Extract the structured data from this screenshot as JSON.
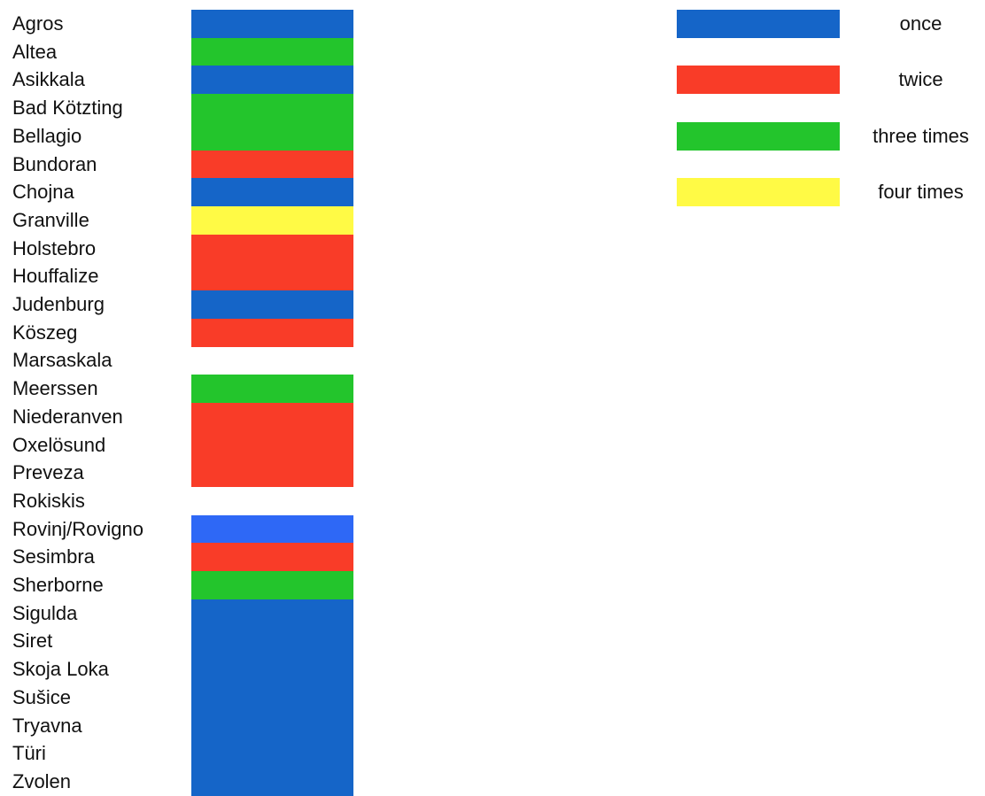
{
  "chart_data": {
    "type": "table",
    "title": "",
    "categories": [
      "Agros",
      "Altea",
      "Asikkala",
      "Bad Kötzting",
      "Bellagio",
      "Bundoran",
      "Chojna",
      "Granville",
      "Holstebro",
      "Houffalize",
      "Judenburg",
      "Köszeg",
      "Marsaskala",
      "Meerssen",
      "Niederanven",
      "Oxelösund",
      "Preveza",
      "Rokiskis",
      "Rovinj/Rovigno",
      "Sesimbra",
      "Sherborne",
      "Sigulda",
      "Siret",
      "Skoja Loka",
      "Sušice",
      "Tryavna",
      "Türi",
      "Zvolen"
    ],
    "values": [
      1,
      3,
      1,
      3,
      3,
      2,
      1,
      4,
      2,
      2,
      1,
      2,
      0,
      3,
      2,
      2,
      2,
      0,
      1,
      2,
      3,
      1,
      1,
      1,
      1,
      1,
      1,
      1
    ],
    "legend": {
      "placement": "top-right",
      "entries": [
        {
          "value": 1,
          "label": "once",
          "color": "#1565c8"
        },
        {
          "value": 2,
          "label": "twice",
          "color": "#f93c28"
        },
        {
          "value": 3,
          "label": "three times",
          "color": "#23c52c"
        },
        {
          "value": 4,
          "label": "four times",
          "color": "#fffa45"
        }
      ]
    },
    "highlight_color": "#2e68f6",
    "highlight_category": "Rovinj/Rovigno"
  }
}
